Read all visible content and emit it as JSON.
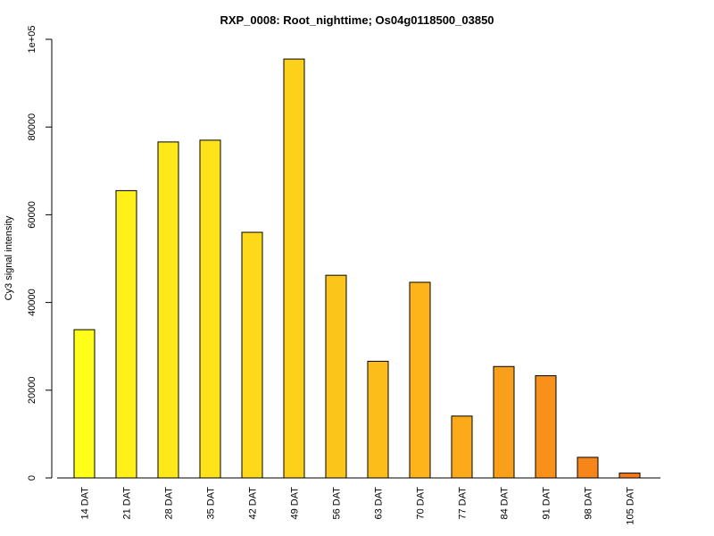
{
  "chart_data": {
    "type": "bar",
    "title": "RXP_0008: Root_nighttime; Os04g0118500_03850",
    "xlabel": "",
    "ylabel": "Cy3  signal intensity",
    "categories": [
      "14 DAT",
      "21 DAT",
      "28 DAT",
      "35 DAT",
      "42 DAT",
      "49 DAT",
      "56 DAT",
      "63 DAT",
      "70 DAT",
      "77 DAT",
      "84 DAT",
      "91 DAT",
      "98 DAT",
      "105 DAT"
    ],
    "values": [
      33800,
      65500,
      76600,
      77000,
      56000,
      95500,
      46200,
      26600,
      44600,
      14100,
      25400,
      23300,
      4700,
      1100
    ],
    "ylim": [
      0,
      100000
    ],
    "yticks": [
      0,
      20000,
      40000,
      60000,
      80000,
      100000
    ],
    "ytick_labels": [
      "0",
      "20000",
      "40000",
      "60000",
      "80000",
      "1e+05"
    ],
    "colors": [
      "#FFFF1A",
      "#FFF01A",
      "#FFE81A",
      "#FFE31A",
      "#FDD91A",
      "#FDD01A",
      "#FCC51A",
      "#FCBD1A",
      "#FCB41A",
      "#FCAA1A",
      "#FA9F1A",
      "#F8901A",
      "#F6851A",
      "#F47A1A"
    ],
    "grid": false,
    "legend": "none"
  }
}
